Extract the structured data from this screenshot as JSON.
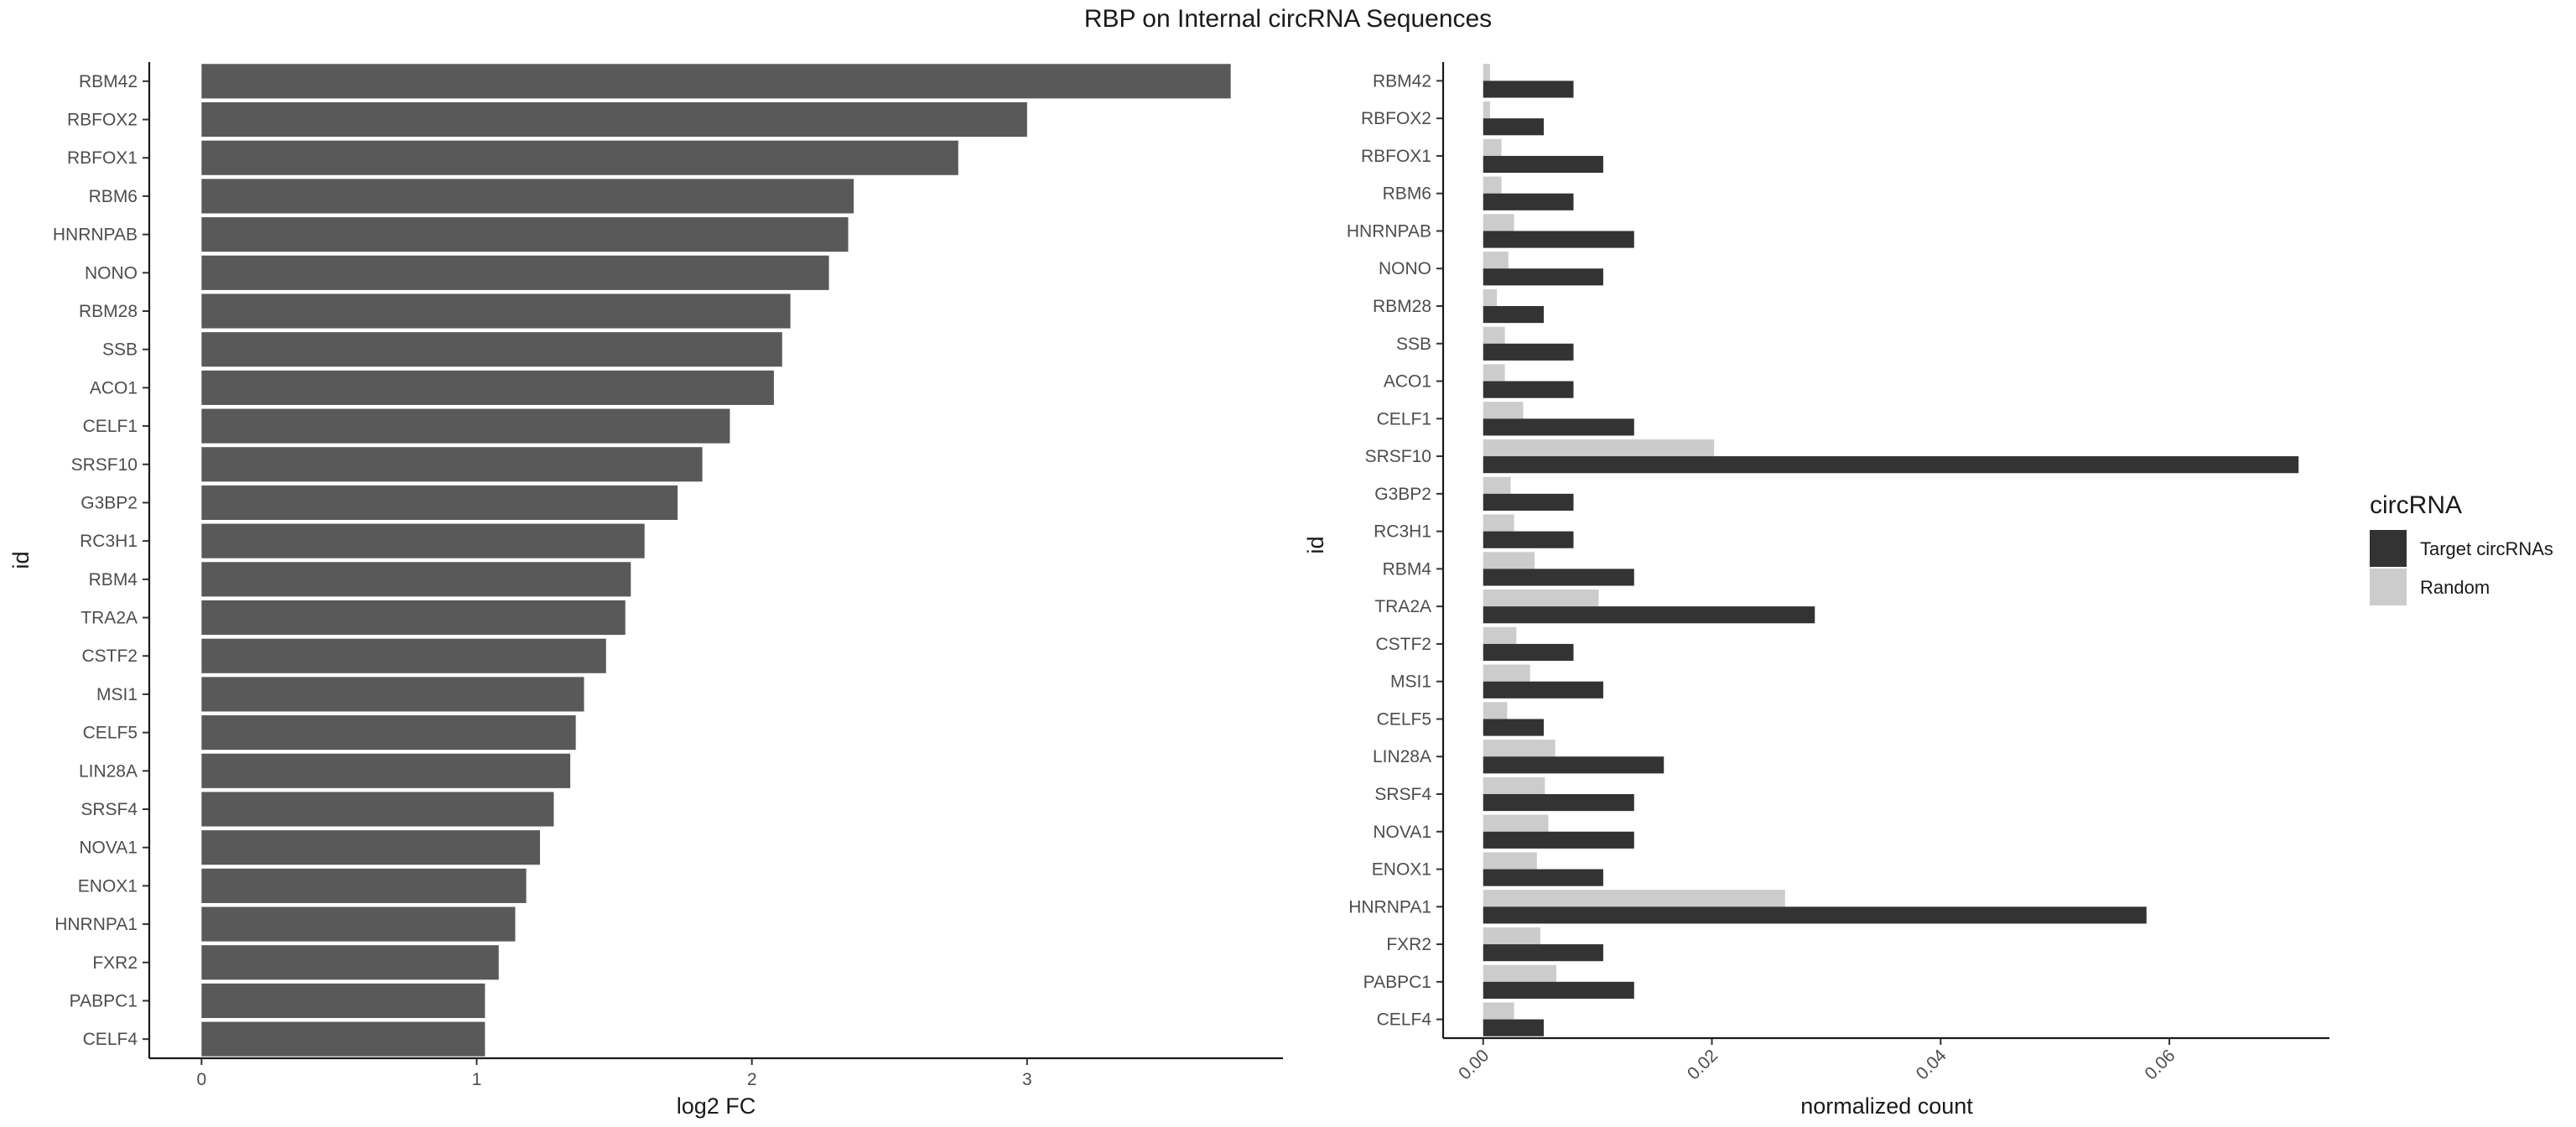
{
  "title": "RBP on Internal circRNA Sequences",
  "chart_data": [
    {
      "type": "bar",
      "orientation": "horizontal",
      "ylabel": "id",
      "xlabel": "log2 FC",
      "xlim": [
        -0.19,
        3.93
      ],
      "x_ticks": [
        "0",
        "1",
        "2",
        "3"
      ],
      "x_tick_values": [
        0,
        1,
        2,
        3
      ],
      "grid": false,
      "bar_color": "#595959",
      "categories": [
        "RBM42",
        "RBFOX2",
        "RBFOX1",
        "RBM6",
        "HNRNPAB",
        "NONO",
        "RBM28",
        "SSB",
        "ACO1",
        "CELF1",
        "SRSF10",
        "G3BP2",
        "RC3H1",
        "RBM4",
        "TRA2A",
        "CSTF2",
        "MSI1",
        "CELF5",
        "LIN28A",
        "SRSF4",
        "NOVA1",
        "ENOX1",
        "HNRNPA1",
        "FXR2",
        "PABPC1",
        "CELF4"
      ],
      "values": [
        3.74,
        3.0,
        2.75,
        2.37,
        2.35,
        2.28,
        2.14,
        2.11,
        2.08,
        1.92,
        1.82,
        1.73,
        1.61,
        1.56,
        1.54,
        1.47,
        1.39,
        1.36,
        1.34,
        1.28,
        1.23,
        1.18,
        1.14,
        1.08,
        1.03,
        1.03
      ]
    },
    {
      "type": "bar",
      "orientation": "horizontal",
      "grouped": true,
      "ylabel": "id",
      "xlabel": "normalized count",
      "xlim": [
        -0.0035,
        0.074
      ],
      "x_ticks": [
        "0.00",
        "0.02",
        "0.04",
        "0.06"
      ],
      "x_tick_values": [
        0,
        0.02,
        0.04,
        0.06
      ],
      "grid": false,
      "legend_position": "right",
      "legend_title": "circRNA",
      "categories": [
        "RBM42",
        "RBFOX2",
        "RBFOX1",
        "RBM6",
        "HNRNPAB",
        "NONO",
        "RBM28",
        "SSB",
        "ACO1",
        "CELF1",
        "SRSF10",
        "G3BP2",
        "RC3H1",
        "RBM4",
        "TRA2A",
        "CSTF2",
        "MSI1",
        "CELF5",
        "LIN28A",
        "SRSF4",
        "NOVA1",
        "ENOX1",
        "HNRNPA1",
        "FXR2",
        "PABPC1",
        "CELF4"
      ],
      "series": [
        {
          "name": "Target circRNAs",
          "color": "#333333",
          "values": [
            0.0079,
            0.0053,
            0.0105,
            0.0079,
            0.0132,
            0.0105,
            0.0053,
            0.0079,
            0.0079,
            0.0132,
            0.0713,
            0.0079,
            0.0079,
            0.0132,
            0.029,
            0.0079,
            0.0105,
            0.0053,
            0.0158,
            0.0132,
            0.0132,
            0.0105,
            0.058,
            0.0105,
            0.0132,
            0.0053
          ]
        },
        {
          "name": "Random",
          "color": "#cccccc",
          "values": [
            0.0006,
            0.0006,
            0.0016,
            0.0016,
            0.0027,
            0.0022,
            0.0012,
            0.0019,
            0.0019,
            0.0035,
            0.0202,
            0.0024,
            0.0027,
            0.0045,
            0.0101,
            0.0029,
            0.0041,
            0.0021,
            0.0063,
            0.0054,
            0.0057,
            0.0047,
            0.0264,
            0.005,
            0.0064,
            0.0027
          ]
        }
      ]
    }
  ]
}
